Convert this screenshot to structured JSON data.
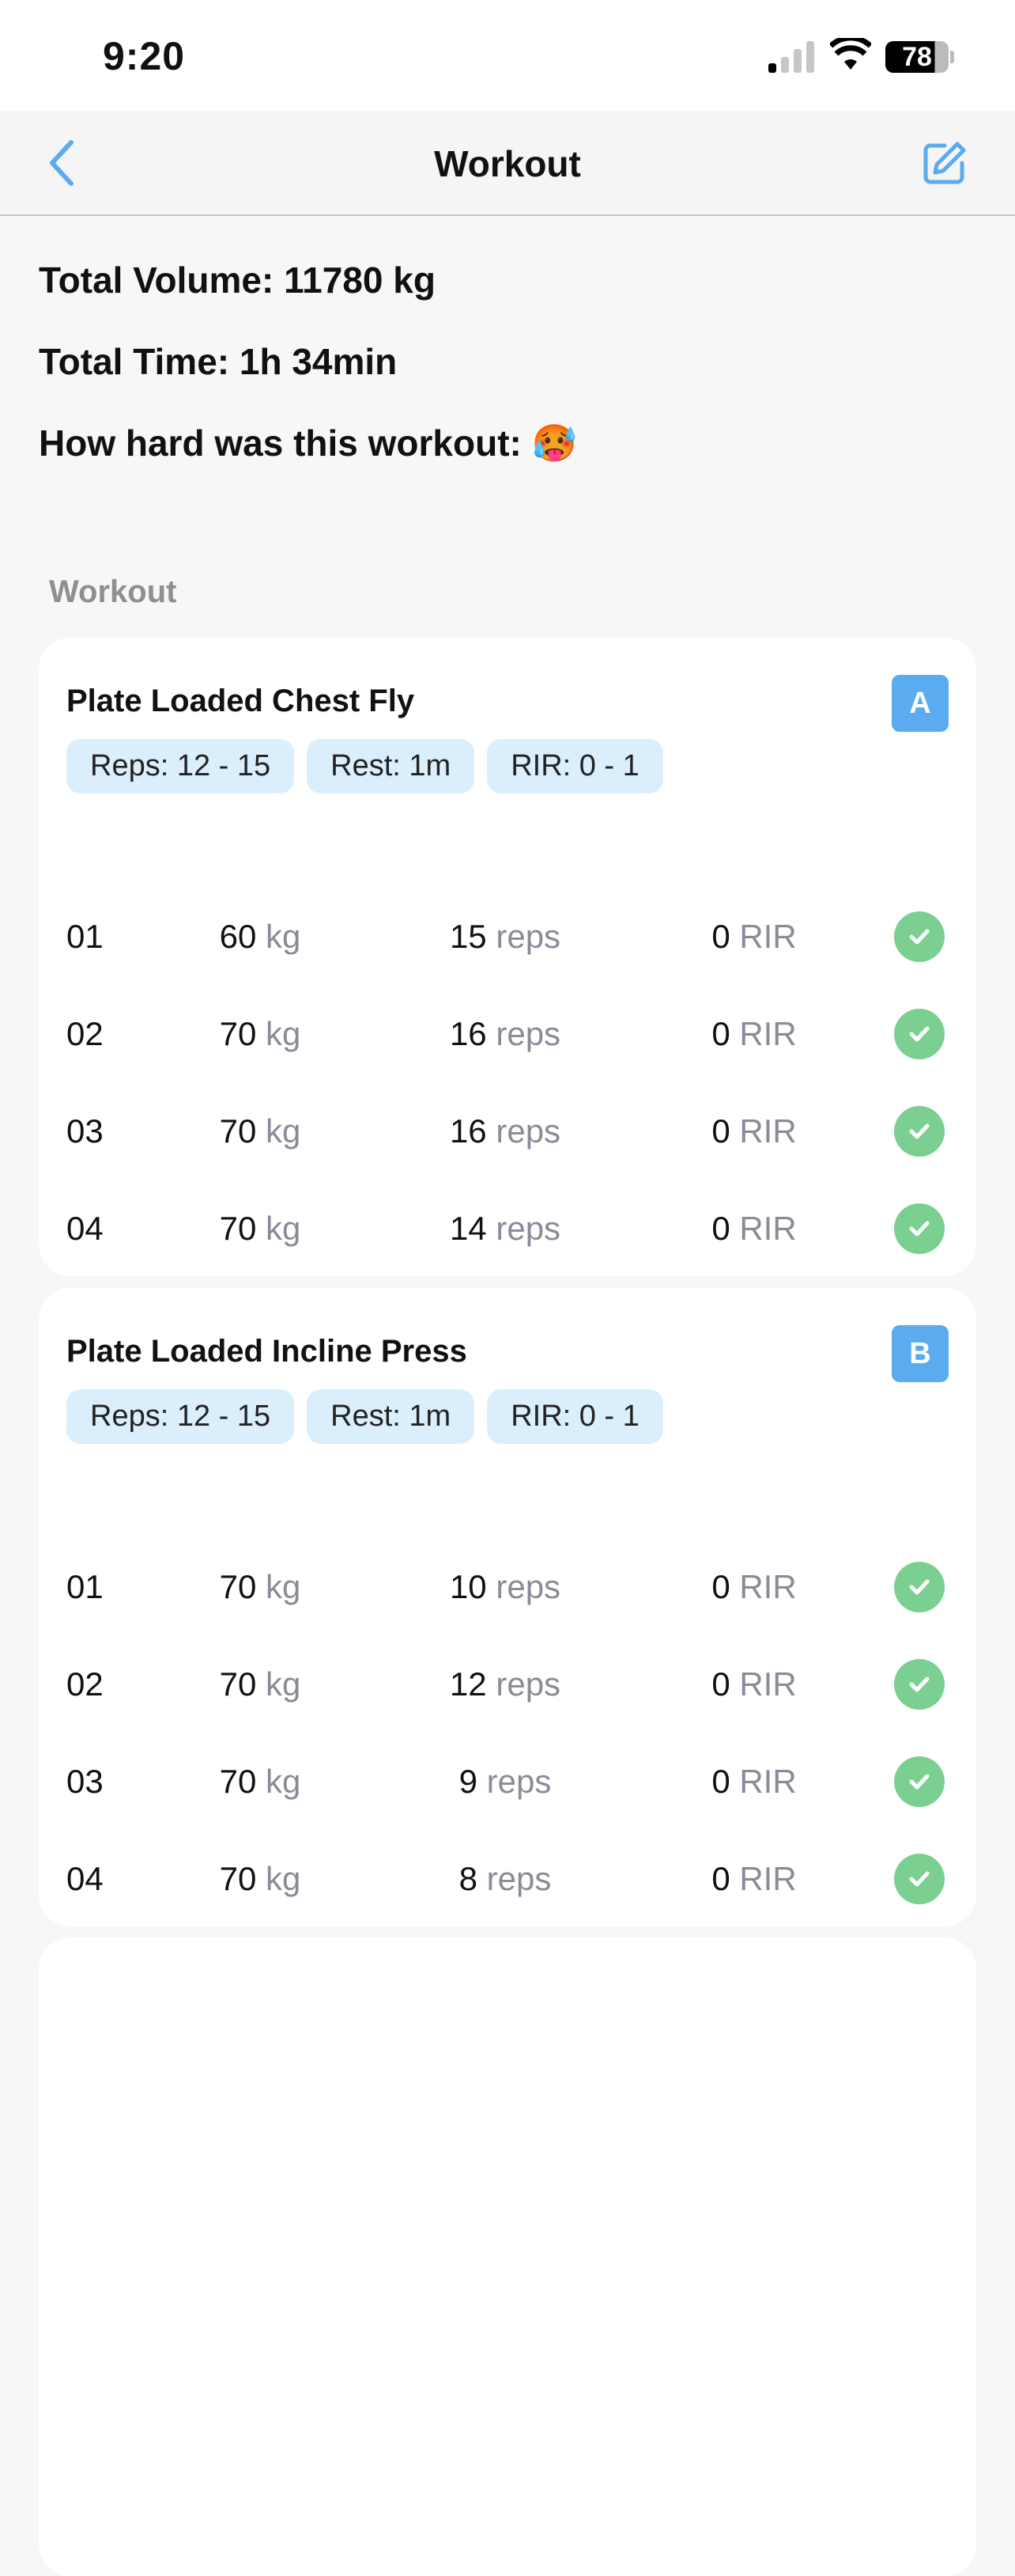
{
  "status_bar": {
    "time": "9:20",
    "battery": "78"
  },
  "nav": {
    "title": "Workout"
  },
  "summary": {
    "total_volume": "Total Volume: 11780 kg",
    "total_time": "Total Time: 1h 34min",
    "difficulty": "How hard was this workout: 🥵"
  },
  "section_title": "Workout",
  "exercises": [
    {
      "name": "Plate Loaded Chest Fly",
      "badge": "A",
      "chips": [
        "Reps: 12 - 15",
        "Rest: 1m",
        "RIR: 0 - 1"
      ],
      "sets": [
        {
          "n": "01",
          "kg": "60",
          "reps": "15",
          "rir": "0"
        },
        {
          "n": "02",
          "kg": "70",
          "reps": "16",
          "rir": "0"
        },
        {
          "n": "03",
          "kg": "70",
          "reps": "16",
          "rir": "0"
        },
        {
          "n": "04",
          "kg": "70",
          "reps": "14",
          "rir": "0"
        }
      ]
    },
    {
      "name": "Plate Loaded Incline Press",
      "badge": "B",
      "chips": [
        "Reps: 12 - 15",
        "Rest: 1m",
        "RIR: 0 - 1"
      ],
      "sets": [
        {
          "n": "01",
          "kg": "70",
          "reps": "10",
          "rir": "0"
        },
        {
          "n": "02",
          "kg": "70",
          "reps": "12",
          "rir": "0"
        },
        {
          "n": "03",
          "kg": "70",
          "reps": "9",
          "rir": "0"
        },
        {
          "n": "04",
          "kg": "70",
          "reps": "8",
          "rir": "0"
        }
      ]
    }
  ],
  "units": {
    "kg": "kg",
    "reps": "reps",
    "rir": "RIR"
  },
  "colors": {
    "accent": "#5aabf0",
    "chip": "#dbeefb",
    "done": "#7acf91"
  }
}
